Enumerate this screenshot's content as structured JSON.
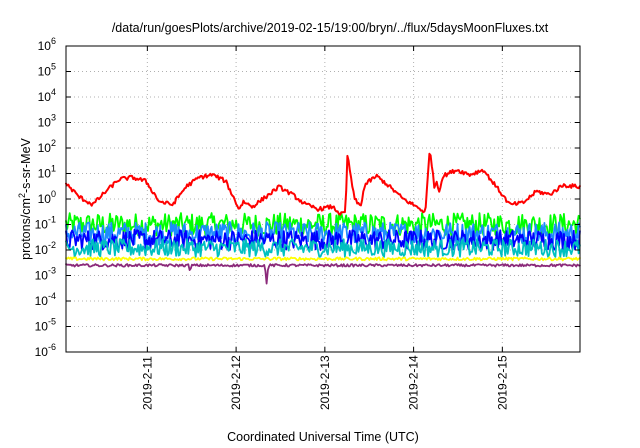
{
  "chart_data": {
    "type": "line",
    "title": "/data/run/goesPlots/archive/2019-02-15/19:00/bryn/../flux/5daysMoonFluxes.txt",
    "xlabel": "Coordinated Universal Time (UTC)",
    "ylabel_parts": [
      "protons/cm",
      "2",
      "-s-sr-MeV"
    ],
    "yscale": "log",
    "ylim": [
      1e-06,
      1000000.0
    ],
    "ytick_labels": [
      {
        "base": "10",
        "exp": "-6"
      },
      {
        "base": "10",
        "exp": "-5"
      },
      {
        "base": "10",
        "exp": "-4"
      },
      {
        "base": "10",
        "exp": "-3"
      },
      {
        "base": "10",
        "exp": "-2"
      },
      {
        "base": "10",
        "exp": "-1"
      },
      {
        "base": "10",
        "exp": "0"
      },
      {
        "base": "10",
        "exp": "1"
      },
      {
        "base": "10",
        "exp": "2"
      },
      {
        "base": "10",
        "exp": "3"
      },
      {
        "base": "10",
        "exp": "4"
      },
      {
        "base": "10",
        "exp": "5"
      },
      {
        "base": "10",
        "exp": "6"
      }
    ],
    "xlim": [
      "2019-02-10 02:00",
      "2019-02-15 21:00"
    ],
    "xticks": [
      "2019-2-11",
      "2019-2-12",
      "2019-2-13",
      "2019-2-14",
      "2019-2-15"
    ],
    "xtick_dates": [
      "2019-02-11",
      "2019-02-12",
      "2019-02-13",
      "2019-02-14",
      "2019-02-15"
    ],
    "grid": true,
    "series": [
      {
        "color": "#ff0000",
        "x_days": [
          0,
          0.15,
          0.3,
          0.45,
          0.6,
          0.75,
          0.9,
          1.05,
          1.2,
          1.35,
          1.5,
          1.65,
          1.8,
          1.95,
          2.0,
          2.1,
          2.25,
          2.4,
          2.55,
          2.7,
          2.85,
          3.0,
          3.1,
          3.15,
          3.17,
          3.25,
          3.32,
          3.35,
          3.38,
          3.5,
          3.65,
          3.8,
          3.95,
          4.05,
          4.1,
          4.15,
          4.18,
          4.2,
          4.25,
          4.4,
          4.55,
          4.7,
          4.85,
          5.0,
          5.15,
          5.3,
          5.45,
          5.6,
          5.79
        ],
        "values": [
          4,
          1.2,
          0.6,
          2,
          6,
          7,
          5,
          0.8,
          0.6,
          3,
          7,
          9,
          5,
          0.4,
          0.8,
          0.5,
          1.2,
          3,
          1.5,
          0.6,
          0.4,
          0.5,
          0.25,
          0.3,
          55,
          1,
          0.5,
          2,
          4,
          8,
          3,
          1,
          0.5,
          0.3,
          110,
          3,
          5,
          2,
          8,
          14,
          9,
          14,
          3,
          0.6,
          0.7,
          2,
          1.5,
          3.5,
          3
        ],
        "noise": 0.08
      },
      {
        "color": "#00ff00",
        "x_days": [
          0,
          5.79
        ],
        "values": [
          0.1,
          0.1
        ],
        "noise": 0.45
      },
      {
        "color": "#1e8cff",
        "x_days": [
          0,
          5.79
        ],
        "values": [
          0.045,
          0.045
        ],
        "noise": 0.45
      },
      {
        "color": "#0000ff",
        "x_days": [
          0,
          5.79
        ],
        "values": [
          0.025,
          0.025
        ],
        "noise": 0.4
      },
      {
        "color": "#00c0c0",
        "x_days": [
          0,
          5.79
        ],
        "values": [
          0.012,
          0.012
        ],
        "noise": 0.35
      },
      {
        "color": "#ffff00",
        "x_days": [
          0,
          5.79
        ],
        "values": [
          0.0045,
          0.0045
        ],
        "noise": 0.06
      },
      {
        "color": "#8b2a7a",
        "x_days": [
          0,
          1.38,
          1.4,
          1.42,
          2.24,
          2.26,
          2.28,
          5.79
        ],
        "values": [
          0.0025,
          0.0025,
          0.0015,
          0.0025,
          0.0025,
          0.0005,
          0.0025,
          0.0025
        ],
        "noise": 0.05
      }
    ]
  }
}
